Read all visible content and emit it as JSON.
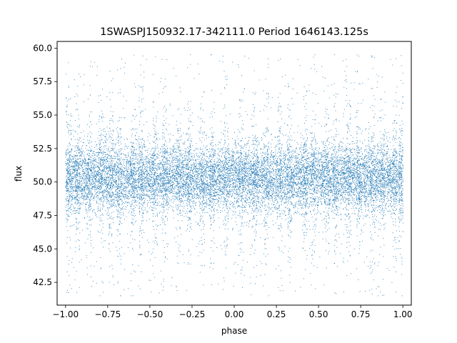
{
  "chart_data": {
    "type": "scatter",
    "title": "1SWASPJ150932.17-342111.0 Period 1646143.125s",
    "xlabel": "phase",
    "ylabel": "flux",
    "xlim": [
      -1.05,
      1.05
    ],
    "ylim": [
      40.8,
      60.5
    ],
    "x_ticks": [
      -1.0,
      -0.75,
      -0.5,
      -0.25,
      0.0,
      0.25,
      0.5,
      0.75,
      1.0
    ],
    "x_tick_labels": [
      "−1.00",
      "−0.75",
      "−0.50",
      "−0.25",
      "0.00",
      "0.25",
      "0.50",
      "0.75",
      "1.00"
    ],
    "y_ticks": [
      42.5,
      45.0,
      47.5,
      50.0,
      52.5,
      55.0,
      57.5,
      60.0
    ],
    "y_tick_labels": [
      "42.5",
      "45.0",
      "47.5",
      "50.0",
      "52.5",
      "55.0",
      "57.5",
      "60.0"
    ],
    "grid": false,
    "marker_color": "#1f77b4",
    "series": [
      {
        "name": "",
        "description_of_distribution": "dense scatter of points for phase in [-1, 1], flux centred near 50.3 with typical spread of about +/-2.5, dense band roughly 47.5 to 53, with sparse outliers from about 41.5 up to 59.5 concentrated in vertical stripes",
        "phase_range": [
          -1.0,
          1.0
        ],
        "flux_center": 50.3,
        "flux_core_range": [
          47.0,
          53.5
        ],
        "flux_outlier_range": [
          41.5,
          59.5
        ],
        "stripe_phases": [
          -0.98,
          -0.93,
          -0.86,
          -0.79,
          -0.73,
          -0.68,
          -0.6,
          -0.55,
          -0.47,
          -0.41,
          -0.33,
          -0.27,
          -0.19,
          -0.13,
          -0.05,
          0.04,
          0.12,
          0.19,
          0.27,
          0.33,
          0.42,
          0.47,
          0.55,
          0.6,
          0.68,
          0.74,
          0.82,
          0.88,
          0.95,
          0.99
        ]
      }
    ]
  }
}
